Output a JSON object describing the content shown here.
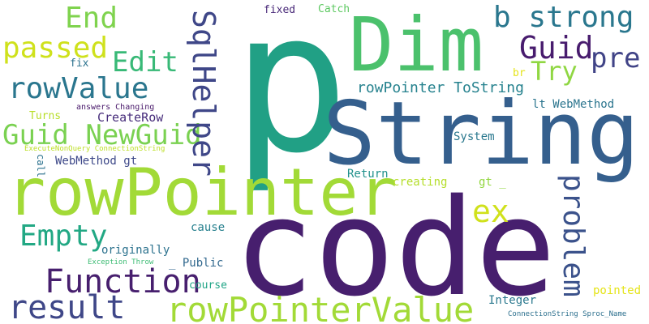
{
  "words": [
    {
      "text": "p",
      "color": "#21a085"
    },
    {
      "text": "code",
      "color": "#471f6e"
    },
    {
      "text": "String",
      "color": "#355f8d"
    },
    {
      "text": "rowPointer",
      "color": "#a2da37"
    },
    {
      "text": "Dim",
      "color": "#4bc16c"
    },
    {
      "text": "rowPointerValue",
      "color": "#a2da37"
    },
    {
      "text": "Function",
      "color": "#471f6e"
    },
    {
      "text": "result",
      "color": "#3f4788"
    },
    {
      "text": "Empty",
      "color": "#22a884"
    },
    {
      "text": "Guid NewGuid",
      "color": "#7ad151"
    },
    {
      "text": "rowValue",
      "color": "#2a768e"
    },
    {
      "text": "passed",
      "color": "#cfe11c"
    },
    {
      "text": "End",
      "color": "#7fd34e"
    },
    {
      "text": "Edit",
      "color": "#38b977"
    },
    {
      "text": "SqlHelper",
      "color": "#3f4788"
    },
    {
      "text": "b strong",
      "color": "#2a778e"
    },
    {
      "text": "Guid",
      "color": "#481c6e"
    },
    {
      "text": "pre",
      "color": "#414487"
    },
    {
      "text": "Try",
      "color": "#90d743"
    },
    {
      "text": "ex",
      "color": "#d0e11c"
    },
    {
      "text": "problem",
      "color": "#3b528b"
    },
    {
      "text": "rowPointer ToString",
      "color": "#26828e"
    },
    {
      "text": "lt WebMethod",
      "color": "#2b758e"
    },
    {
      "text": "CreateRow",
      "color": "#472d7b"
    },
    {
      "text": "WebMethod gt",
      "color": "#3e4989"
    },
    {
      "text": "System",
      "color": "#2a788e"
    },
    {
      "text": "Return",
      "color": "#21918c"
    },
    {
      "text": "creating",
      "color": "#b5de2b"
    },
    {
      "text": "gt _",
      "color": "#93d741"
    },
    {
      "text": "cause",
      "color": "#27808e"
    },
    {
      "text": "originally",
      "color": "#2c728e"
    },
    {
      "text": "_ Public",
      "color": "#31688e"
    },
    {
      "text": "course",
      "color": "#20a486"
    },
    {
      "text": "Integer",
      "color": "#2a788e"
    },
    {
      "text": "pointed",
      "color": "#e5e419"
    },
    {
      "text": "fixed",
      "color": "#482878"
    },
    {
      "text": "Catch",
      "color": "#5ec962"
    },
    {
      "text": "fix",
      "color": "#2c728e"
    },
    {
      "text": "br",
      "color": "#e5e419"
    },
    {
      "text": "Turns",
      "color": "#b8de29"
    },
    {
      "text": "answers Changing",
      "color": "#48186a"
    },
    {
      "text": "ExecuteNonQuery ConnectionString",
      "color": "#bddf26"
    },
    {
      "text": "call",
      "color": "#2c728e"
    },
    {
      "text": "Exception Throw",
      "color": "#3dbc74"
    },
    {
      "text": "ConnectionString Sproc_Name",
      "color": "#2d708e"
    }
  ]
}
